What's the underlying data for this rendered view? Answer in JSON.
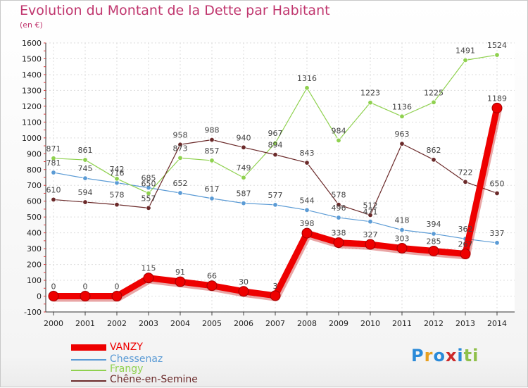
{
  "header": {
    "title": "Evolution du Montant de la Dette par Habitant",
    "unit": "(en €)"
  },
  "chart_data": {
    "type": "line",
    "title": "Evolution du Montant de la Dette par Habitant",
    "ylabel": "(en €)",
    "xlabel": "",
    "x": [
      "2000",
      "2001",
      "2002",
      "2003",
      "2004",
      "2005",
      "2006",
      "2007",
      "2008",
      "2009",
      "2010",
      "2011",
      "2012",
      "2013",
      "2014"
    ],
    "ylim": [
      -100,
      1600
    ],
    "yticks": [
      -100,
      0,
      100,
      200,
      300,
      400,
      500,
      600,
      700,
      800,
      900,
      1000,
      1100,
      1200,
      1300,
      1400,
      1500,
      1600
    ],
    "grid": true,
    "legend_position": "bottom-left",
    "series": [
      {
        "name": "VANZY",
        "color": "#ee0000",
        "values": [
          0,
          0,
          0,
          115,
          91,
          66,
          30,
          3,
          398,
          338,
          327,
          303,
          285,
          267,
          1189
        ]
      },
      {
        "name": "Chessenaz",
        "color": "#5b9bd5",
        "values": [
          781,
          745,
          716,
          685,
          652,
          617,
          587,
          577,
          544,
          496,
          471,
          418,
          394,
          362,
          337
        ]
      },
      {
        "name": "Frangy",
        "color": "#8fd14f",
        "values": [
          871,
          861,
          742,
          650,
          873,
          857,
          749,
          967,
          1316,
          984,
          1223,
          1136,
          1225,
          1491,
          1524
        ]
      },
      {
        "name": "Chêne-en-Semine",
        "color": "#6b2a2a",
        "values": [
          610,
          594,
          578,
          557,
          958,
          988,
          940,
          894,
          843,
          578,
          512,
          963,
          862,
          722,
          650
        ]
      }
    ]
  },
  "brand": {
    "letters": [
      "P",
      "r",
      "o",
      "x",
      "i",
      "t",
      "i"
    ],
    "colors": [
      "#2a8ad8",
      "#e8a020",
      "#2a8ad8",
      "#cc2a2a",
      "#2a8ad8",
      "#8fc04a",
      "#8fc04a"
    ]
  }
}
